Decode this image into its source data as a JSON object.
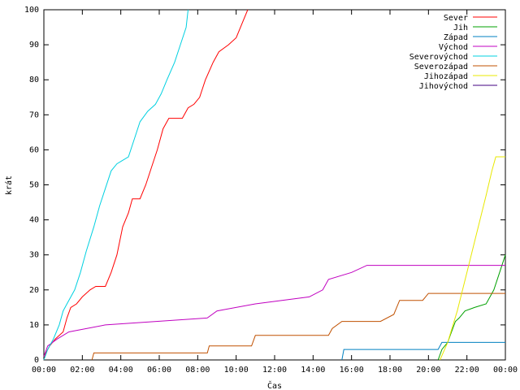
{
  "chart_data": {
    "type": "line",
    "title": "",
    "xlabel": "Čas",
    "ylabel": "krát",
    "xlim": [
      0,
      24
    ],
    "ylim": [
      0,
      100
    ],
    "grid": false,
    "legend_position": "top-right",
    "x_ticks": [
      {
        "value": 0,
        "label": "00:00"
      },
      {
        "value": 2,
        "label": "02:00"
      },
      {
        "value": 4,
        "label": "04:00"
      },
      {
        "value": 6,
        "label": "06:00"
      },
      {
        "value": 8,
        "label": "08:00"
      },
      {
        "value": 10,
        "label": "10:00"
      },
      {
        "value": 12,
        "label": "12:00"
      },
      {
        "value": 14,
        "label": "14:00"
      },
      {
        "value": 16,
        "label": "16:00"
      },
      {
        "value": 18,
        "label": "18:00"
      },
      {
        "value": 20,
        "label": "20:00"
      },
      {
        "value": 22,
        "label": "22:00"
      },
      {
        "value": 24,
        "label": "00:00"
      }
    ],
    "y_ticks": [
      {
        "value": 0,
        "label": "0"
      },
      {
        "value": 10,
        "label": "10"
      },
      {
        "value": 20,
        "label": "20"
      },
      {
        "value": 30,
        "label": "30"
      },
      {
        "value": 40,
        "label": "40"
      },
      {
        "value": 50,
        "label": "50"
      },
      {
        "value": 60,
        "label": "60"
      },
      {
        "value": 70,
        "label": "70"
      },
      {
        "value": 80,
        "label": "80"
      },
      {
        "value": 90,
        "label": "90"
      },
      {
        "value": 100,
        "label": "100"
      }
    ],
    "series": [
      {
        "name": "Sever",
        "color": "#ff0000",
        "points": [
          [
            0.0,
            0
          ],
          [
            0.1,
            2
          ],
          [
            0.3,
            4
          ],
          [
            0.6,
            6
          ],
          [
            1.0,
            8
          ],
          [
            1.2,
            12
          ],
          [
            1.4,
            15
          ],
          [
            1.7,
            16
          ],
          [
            2.0,
            18
          ],
          [
            2.4,
            20
          ],
          [
            2.7,
            21
          ],
          [
            3.2,
            21
          ],
          [
            3.5,
            25
          ],
          [
            3.8,
            30
          ],
          [
            4.1,
            38
          ],
          [
            4.4,
            42
          ],
          [
            4.6,
            46
          ],
          [
            5.0,
            46
          ],
          [
            5.3,
            50
          ],
          [
            5.6,
            55
          ],
          [
            5.9,
            60
          ],
          [
            6.2,
            66
          ],
          [
            6.5,
            69
          ],
          [
            7.2,
            69
          ],
          [
            7.5,
            72
          ],
          [
            7.8,
            73
          ],
          [
            8.1,
            75
          ],
          [
            8.4,
            80
          ],
          [
            8.8,
            85
          ],
          [
            9.1,
            88
          ],
          [
            9.6,
            90
          ],
          [
            10.0,
            92
          ],
          [
            10.3,
            96
          ],
          [
            10.6,
            100
          ]
        ]
      },
      {
        "name": "Jih",
        "color": "#00a000",
        "points": [
          [
            20.5,
            0
          ],
          [
            20.7,
            3
          ],
          [
            21.0,
            5
          ],
          [
            21.2,
            8
          ],
          [
            21.4,
            11
          ],
          [
            21.6,
            12
          ],
          [
            21.9,
            14
          ],
          [
            22.4,
            15
          ],
          [
            23.0,
            16
          ],
          [
            23.4,
            20
          ],
          [
            23.7,
            25
          ],
          [
            24.0,
            30
          ]
        ]
      },
      {
        "name": "Západ",
        "color": "#0080c0",
        "points": [
          [
            15.5,
            0
          ],
          [
            15.6,
            3
          ],
          [
            20.5,
            3
          ],
          [
            20.7,
            5
          ],
          [
            24.0,
            5
          ]
        ]
      },
      {
        "name": "Východ",
        "color": "#c000c0",
        "points": [
          [
            0.0,
            1
          ],
          [
            0.2,
            4
          ],
          [
            0.7,
            6
          ],
          [
            1.3,
            8
          ],
          [
            3.2,
            10
          ],
          [
            8.5,
            12
          ],
          [
            9.0,
            14
          ],
          [
            11.0,
            16
          ],
          [
            13.8,
            18
          ],
          [
            14.5,
            20
          ],
          [
            14.8,
            23
          ],
          [
            16.0,
            25
          ],
          [
            16.8,
            27
          ],
          [
            24.0,
            27
          ]
        ]
      },
      {
        "name": "Severovýchod",
        "color": "#00d0e0",
        "points": [
          [
            0.0,
            0
          ],
          [
            0.2,
            3
          ],
          [
            0.5,
            6
          ],
          [
            0.8,
            10
          ],
          [
            1.0,
            14
          ],
          [
            1.2,
            16
          ],
          [
            1.6,
            20
          ],
          [
            1.9,
            25
          ],
          [
            2.2,
            31
          ],
          [
            2.6,
            38
          ],
          [
            2.9,
            44
          ],
          [
            3.2,
            49
          ],
          [
            3.5,
            54
          ],
          [
            3.8,
            56
          ],
          [
            4.1,
            57
          ],
          [
            4.4,
            58
          ],
          [
            4.7,
            63
          ],
          [
            5.0,
            68
          ],
          [
            5.4,
            71
          ],
          [
            5.8,
            73
          ],
          [
            6.1,
            76
          ],
          [
            6.4,
            80
          ],
          [
            6.8,
            85
          ],
          [
            7.1,
            90
          ],
          [
            7.4,
            95
          ],
          [
            7.5,
            100
          ]
        ]
      },
      {
        "name": "Severozápad",
        "color": "#c05000",
        "points": [
          [
            2.5,
            0
          ],
          [
            2.6,
            2
          ],
          [
            8.5,
            2
          ],
          [
            8.6,
            4
          ],
          [
            10.8,
            4
          ],
          [
            11.0,
            7
          ],
          [
            14.8,
            7
          ],
          [
            15.0,
            9
          ],
          [
            15.5,
            11
          ],
          [
            17.5,
            11
          ],
          [
            18.2,
            13
          ],
          [
            18.5,
            17
          ],
          [
            19.7,
            17
          ],
          [
            20.0,
            19
          ],
          [
            24.0,
            19
          ]
        ]
      },
      {
        "name": "Jihozápad",
        "color": "#e8e800",
        "points": [
          [
            20.6,
            0
          ],
          [
            21.0,
            5
          ],
          [
            21.5,
            14
          ],
          [
            22.0,
            25
          ],
          [
            22.5,
            36
          ],
          [
            23.0,
            47
          ],
          [
            23.3,
            54
          ],
          [
            23.5,
            58
          ],
          [
            24.0,
            58
          ]
        ]
      },
      {
        "name": "Jihovýchod",
        "color": "#400080",
        "points": []
      }
    ]
  }
}
